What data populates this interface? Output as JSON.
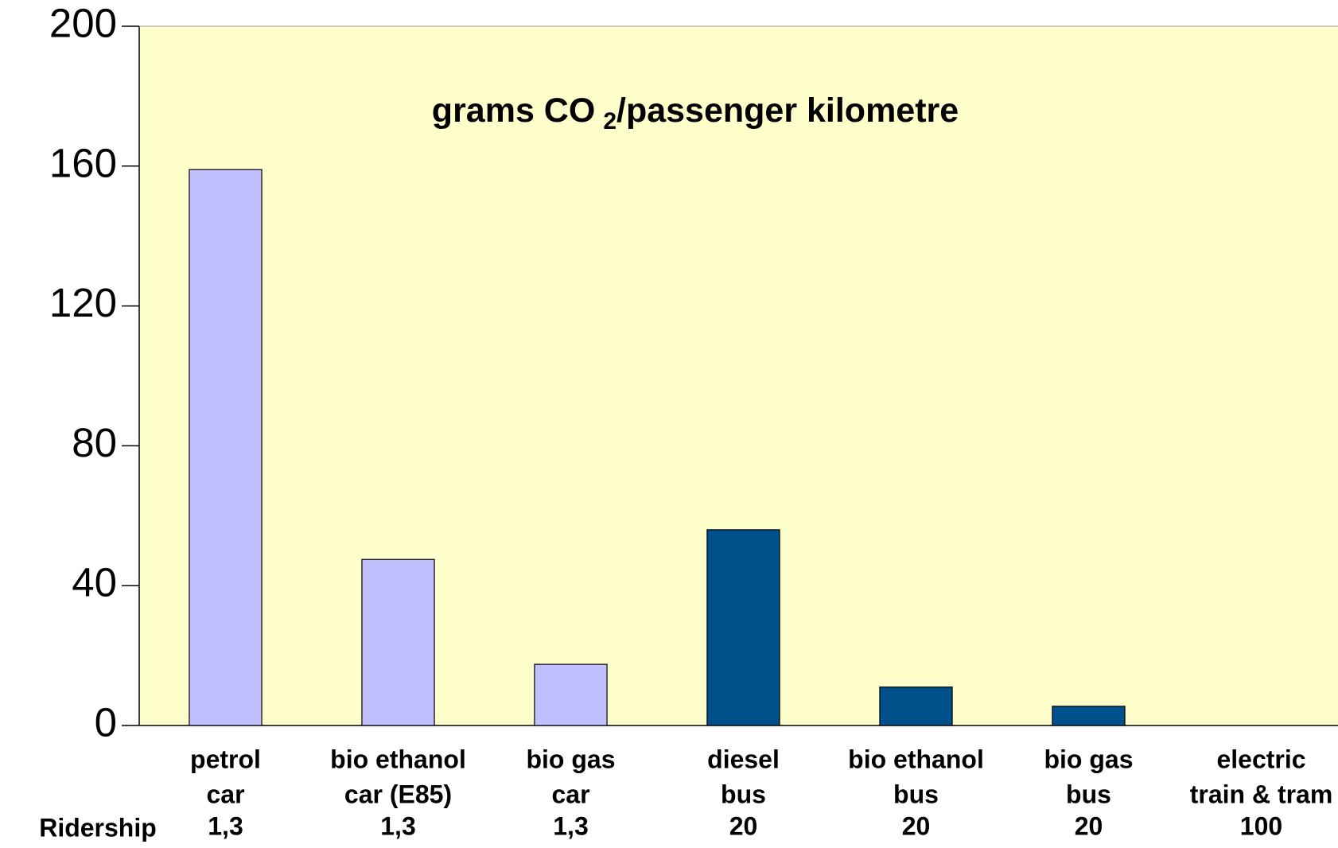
{
  "chart_data": {
    "type": "bar",
    "title": "grams CO",
    "title_subscript": "2",
    "title_rest": "/passenger kilometre",
    "categories": [
      [
        "petrol",
        "car"
      ],
      [
        "bio ethanol",
        "car (E85)"
      ],
      [
        "bio gas",
        "car"
      ],
      [
        "diesel",
        "bus"
      ],
      [
        "bio ethanol",
        "bus"
      ],
      [
        "bio gas",
        "bus"
      ],
      [
        "electric",
        "train & tram"
      ]
    ],
    "values": [
      159,
      47.5,
      17.5,
      56,
      11,
      5.5,
      0
    ],
    "colors": [
      "#c0c0ff",
      "#c0c0ff",
      "#c0c0ff",
      "#00508c",
      "#00508c",
      "#00508c",
      "#00508c"
    ],
    "ridership": {
      "label": "Ridership",
      "values": [
        "1,3",
        "1,3",
        "1,3",
        "20",
        "20",
        "20",
        "100"
      ]
    },
    "ylim": [
      0,
      200
    ],
    "yticks": [
      0,
      40,
      80,
      120,
      160,
      200
    ],
    "grid": false,
    "plot_background": "#ffffcc"
  }
}
